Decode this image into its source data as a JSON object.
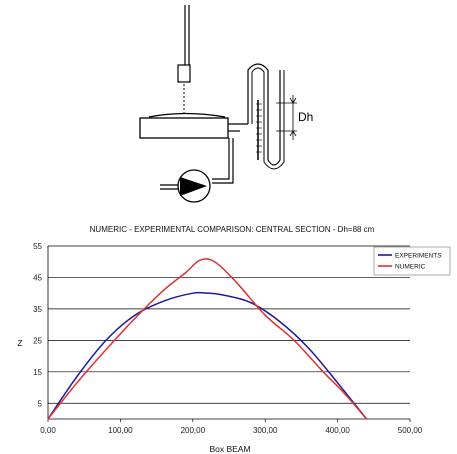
{
  "diagram": {
    "dh_label": "Dh"
  },
  "chart_data": {
    "type": "line",
    "title": "NUMERIC - EXPERIMENTAL COMPARISON: CENTRAL SECTION - Dh=88 cm",
    "xlabel": "Box BEAM",
    "ylabel": "Z",
    "xlim": [
      0,
      500
    ],
    "ylim": [
      0,
      55
    ],
    "x_ticks": [
      "0,00",
      "100,00",
      "200,00",
      "300,00",
      "400,00",
      "500,00"
    ],
    "y_ticks": [
      "5",
      "15",
      "25",
      "35",
      "45",
      "55"
    ],
    "grid": "horizontal",
    "legend": "top-right",
    "series": [
      {
        "name": "EXPERIMENTS",
        "color": "#1a1aa0",
        "x": [
          0,
          40,
          80,
          120,
          160,
          200,
          220,
          240,
          280,
          320,
          360,
          400,
          440
        ],
        "y": [
          0,
          13.5,
          25,
          33,
          37.5,
          40,
          40,
          39.5,
          37,
          31,
          22.5,
          11.5,
          0
        ]
      },
      {
        "name": "NUMERIC",
        "color": "#e03030",
        "x": [
          0,
          40,
          80,
          120,
          160,
          190,
          210,
          230,
          260,
          300,
          340,
          380,
          410,
          440
        ],
        "y": [
          0,
          11.5,
          22,
          32,
          41,
          46.5,
          50.5,
          50,
          43.5,
          33,
          25,
          15,
          8,
          0
        ]
      }
    ]
  }
}
